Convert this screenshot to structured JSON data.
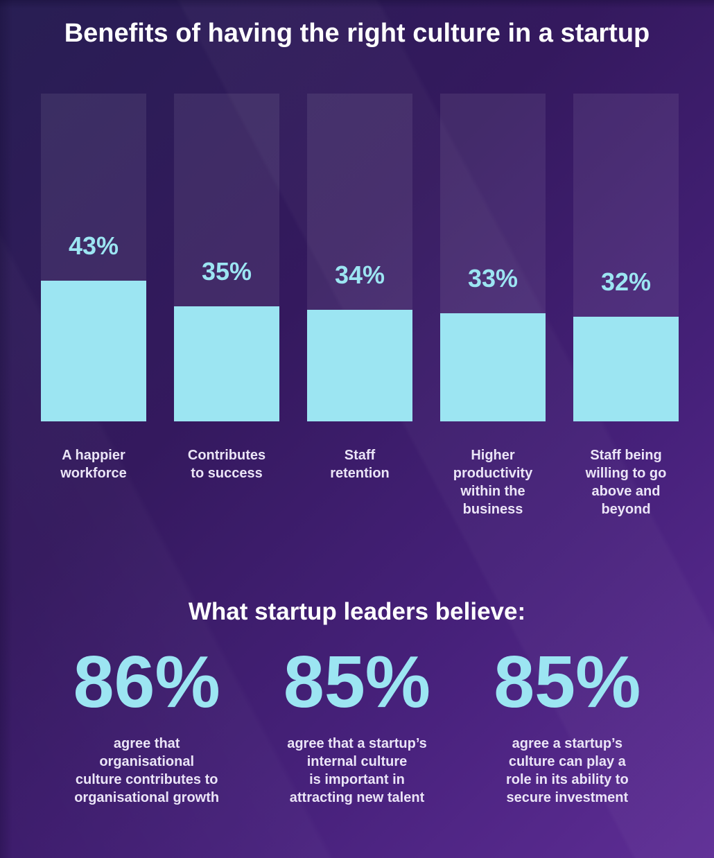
{
  "title": "Benefits of having the right culture in a startup",
  "colors": {
    "background_top_left": "#281e53",
    "background_bottom_right": "#5e2d95",
    "bar_fill": "#9ce5f2",
    "bar_track": "rgba(255,255,255,0.08)",
    "accent_cyan": "#9ce5f2",
    "heading_text": "#ffffff",
    "body_text": "#ebe5f7"
  },
  "chart_data": {
    "type": "bar",
    "title": "Benefits of having the right culture in a startup",
    "unit": "%",
    "categories": [
      "A happier\nworkforce",
      "Contributes\nto success",
      "Staff\nretention",
      "Higher\nproductivity\nwithin the\nbusiness",
      "Staff being\nwilling to go\nabove and\nbeyond"
    ],
    "values": [
      43,
      35,
      34,
      33,
      32
    ],
    "labels": [
      "43%",
      "35%",
      "34%",
      "33%",
      "32%"
    ],
    "xlabel": "",
    "ylabel": "",
    "ylim": [
      0,
      100
    ],
    "grid": false,
    "legend": false,
    "value_label_position": "above-fill-inside-track"
  },
  "beliefs": {
    "title": "What startup leaders believe:",
    "stats": [
      {
        "value": "86%",
        "label": "agree that\norganisational\nculture contributes to\norganisational growth"
      },
      {
        "value": "85%",
        "label": "agree that a startup’s\ninternal culture\nis important in\nattracting new talent"
      },
      {
        "value": "85%",
        "label": "agree a startup’s\nculture can play a\nrole in its ability to\nsecure investment"
      }
    ]
  }
}
